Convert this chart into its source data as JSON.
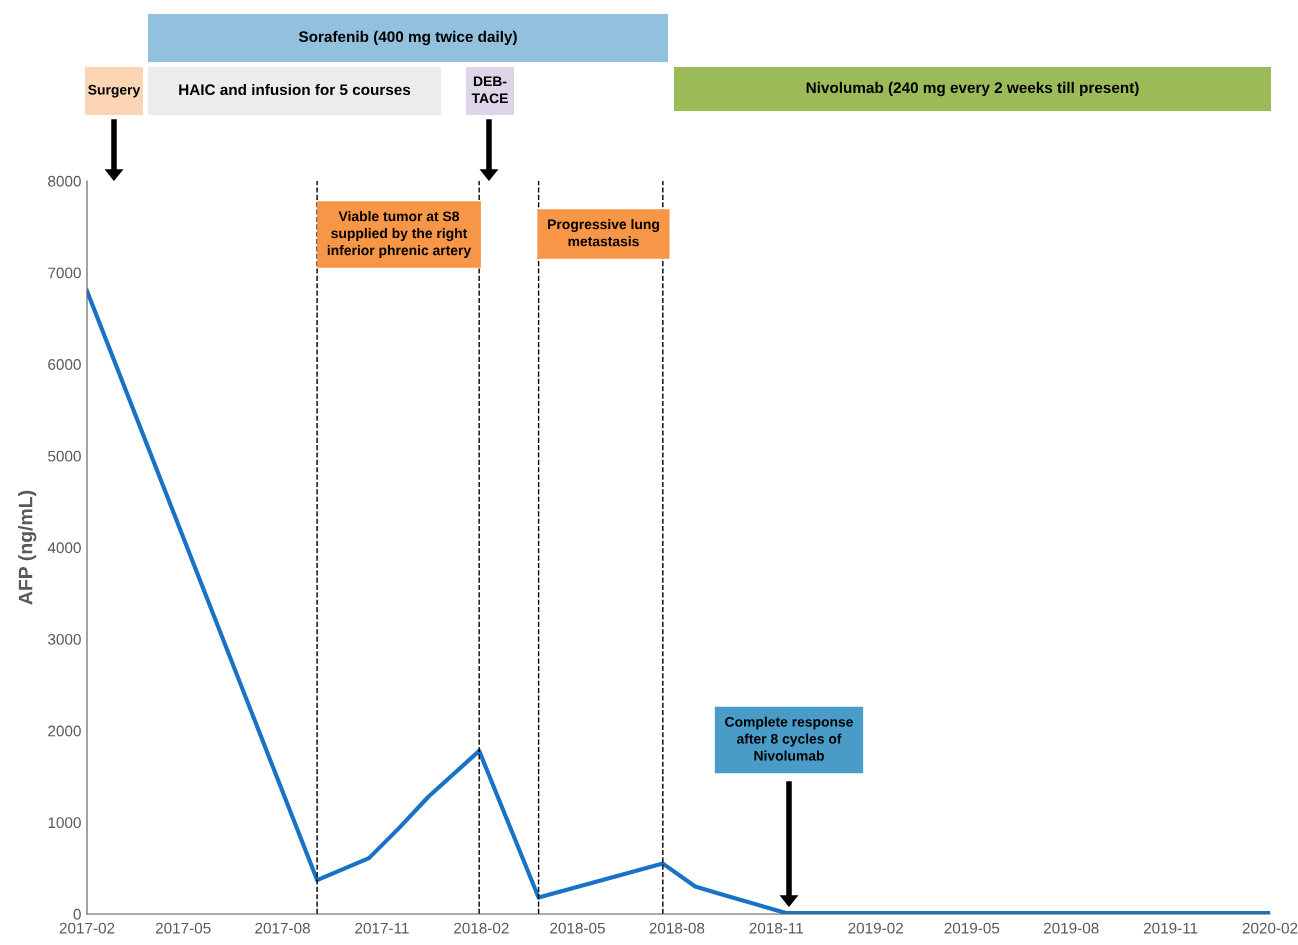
{
  "chart_data": {
    "type": "line",
    "ylabel": "AFP (ng/mL)",
    "x": [
      "2017-02-01",
      "2017-09-02",
      "2017-10-20",
      "2017-11-17",
      "2017-12-14",
      "2018-01-30",
      "2018-03-26",
      "2018-07-19",
      "2018-08-18",
      "2018-09-07",
      "2018-11-10",
      "2019-02-01",
      "2019-05-01",
      "2019-08-01",
      "2019-11-01",
      "2020-02-01"
    ],
    "series": [
      {
        "color": "#1a72c6",
        "values": [
          6800,
          370,
          610,
          940,
          1280,
          1780,
          180,
          550,
          300,
          230,
          10,
          10,
          10,
          10,
          10,
          10
        ]
      }
    ],
    "xlim": [
      "2017-02",
      "2020-02"
    ],
    "xticks": [
      "2017-02",
      "2017-05",
      "2017-08",
      "2017-11",
      "2018-02",
      "2018-05",
      "2018-08",
      "2018-11",
      "2019-02",
      "2019-05",
      "2019-08",
      "2019-11",
      "2020-02"
    ],
    "ylim": [
      0,
      8000
    ],
    "yticks": [
      0,
      1000,
      2000,
      3000,
      4000,
      5000,
      6000,
      7000,
      8000
    ],
    "grid": false,
    "legend": false,
    "marker": "none",
    "line_style": "solid",
    "ref_lines": [
      {
        "axis": "x",
        "value": "2017-09-02",
        "line_style": "dashed",
        "color": "#000000"
      },
      {
        "axis": "x",
        "value": "2018-01-30",
        "line_style": "dashed",
        "color": "#000000"
      },
      {
        "axis": "x",
        "value": "2018-03-26",
        "line_style": "dashed",
        "color": "#000000"
      },
      {
        "axis": "x",
        "value": "2018-07-19",
        "line_style": "dashed",
        "color": "#000000"
      }
    ],
    "annotations": [
      "Sorafenib (400 mg twice daily)",
      "Surgery",
      "HAIC and infusion for 5 courses",
      "DEB-\nTACE",
      "Nivolumab (240 mg every 2 weeks till present)",
      "Viable tumor at S8\nsupplied by the right\ninferior phrenic artery",
      "Progressive lung\nmetastasis",
      "Complete response\nafter 8 cycles of\nNivolumab"
    ]
  }
}
